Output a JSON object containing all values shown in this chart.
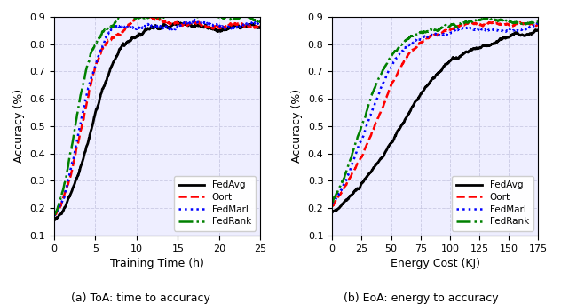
{
  "fig_width": 6.32,
  "fig_height": 3.42,
  "dpi": 100,
  "subplot_a": {
    "xlabel": "Training Time (h)",
    "ylabel": "Accuracy (%)",
    "xlim": [
      0,
      25
    ],
    "ylim": [
      0.1,
      0.9
    ],
    "yticks": [
      0.1,
      0.2,
      0.3,
      0.4,
      0.5,
      0.6,
      0.7,
      0.8,
      0.9
    ],
    "xticks": [
      0,
      5,
      10,
      15,
      20,
      25
    ],
    "caption": "(a) ToA: time to accuracy"
  },
  "subplot_b": {
    "xlabel": "Energy Cost (KJ)",
    "ylabel": "Accuracy (%)",
    "xlim": [
      0,
      175
    ],
    "ylim": [
      0.1,
      0.9
    ],
    "yticks": [
      0.1,
      0.2,
      0.3,
      0.4,
      0.5,
      0.6,
      0.7,
      0.8,
      0.9
    ],
    "xticks": [
      0,
      25,
      50,
      75,
      100,
      125,
      150,
      175
    ],
    "caption": "(b) EoA: energy to accuracy"
  },
  "legend": {
    "entries": [
      "FedAvg",
      "Oort",
      "FedMarl",
      "FedRank"
    ],
    "colors": [
      "#000000",
      "#ff0000",
      "#0000ff",
      "#008000"
    ],
    "styles": [
      "-",
      "--",
      ":",
      "-."
    ],
    "linewidths": [
      2.0,
      1.8,
      1.8,
      1.8
    ]
  },
  "grid_color": "#b0b0d0",
  "grid_alpha": 0.5,
  "background_color": "#eeeeff"
}
